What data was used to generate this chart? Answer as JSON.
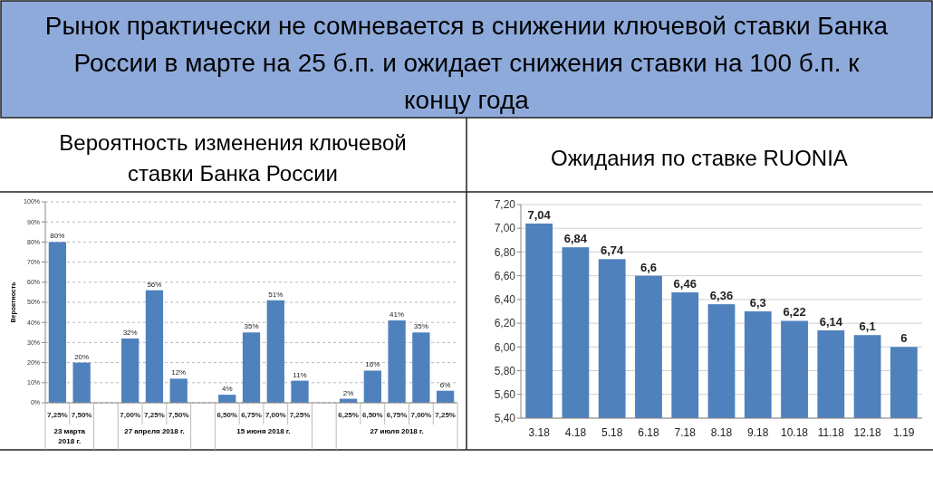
{
  "chart_data": [
    {
      "type": "bar",
      "title": "Рынок практически не сомневается в снижении ключевой ставки Банка России в марте на 25 б.п. и ожидает снижения ставки на 100 б.п. к концу года",
      "subtitle": "Вероятность изменения ключевой ставки Банка России",
      "ylabel": "Вероятность",
      "categories": [
        "7,25%",
        "7,50%",
        null,
        "7,00%",
        "7,25%",
        "7,50%",
        null,
        "6,50%",
        "6,75%",
        "7,00%",
        "7,25%",
        null,
        "6,25%",
        "6,50%",
        "6,75%",
        "7,00%",
        "7,25%"
      ],
      "values": [
        80,
        20,
        null,
        32,
        56,
        12,
        null,
        4,
        35,
        51,
        11,
        null,
        2,
        16,
        41,
        35,
        6
      ],
      "value_labels": [
        "80%",
        "20%",
        null,
        "32%",
        "56%",
        "12%",
        null,
        "4%",
        "35%",
        "51%",
        "11%",
        null,
        "2%",
        "16%",
        "41%",
        "35%",
        "6%"
      ],
      "color": "#4f81bd",
      "annotations": [
        "23 марта 2018 г.",
        "27 апреля 2018 г.",
        "15 июня 2018 г.",
        "27 июля 2018 г."
      ],
      "ylim": [
        0,
        100
      ],
      "yticks": [
        {
          "value": 0,
          "label": "0%"
        },
        {
          "value": 10,
          "label": "10%"
        },
        {
          "value": 20,
          "label": "20%"
        },
        {
          "value": 30,
          "label": "30%"
        },
        {
          "value": 40,
          "label": "40%"
        },
        {
          "value": 50,
          "label": "50%"
        },
        {
          "value": 60,
          "label": "60%"
        },
        {
          "value": 70,
          "label": "70%"
        },
        {
          "value": 80,
          "label": "80%"
        },
        {
          "value": 90,
          "label": "90%"
        },
        {
          "value": 100,
          "label": "100%"
        }
      ],
      "grid": "y",
      "line_style": "dashed"
    },
    {
      "type": "bar",
      "subtitle": "Ожидания по ставке RUONIA",
      "categories": [
        "3.18",
        "4.18",
        "5.18",
        "6.18",
        "7.18",
        "8.18",
        "9.18",
        "10.18",
        "11.18",
        "12.18",
        "1.19"
      ],
      "values": [
        7.04,
        6.84,
        6.74,
        6.6,
        6.46,
        6.36,
        6.3,
        6.22,
        6.14,
        6.1,
        6
      ],
      "value_labels": [
        "7,04",
        "6,84",
        "6,74",
        "6,6",
        "6,46",
        "6,36",
        "6,3",
        "6,22",
        "6,14",
        "6,1",
        "6"
      ],
      "color": "#4f81bd",
      "ylim": [
        5.4,
        7.2
      ],
      "yticks": [
        {
          "value": 5.4,
          "label": "5,40"
        },
        {
          "value": 5.6,
          "label": "5,60"
        },
        {
          "value": 5.8,
          "label": "5,80"
        },
        {
          "value": 6.0,
          "label": "6,00"
        },
        {
          "value": 6.2,
          "label": "6,20"
        },
        {
          "value": 6.4,
          "label": "6,40"
        },
        {
          "value": 6.6,
          "label": "6,60"
        },
        {
          "value": 6.8,
          "label": "6,80"
        },
        {
          "value": 7.0,
          "label": "7,00"
        },
        {
          "value": 7.2,
          "label": "7,20"
        }
      ],
      "grid": "y",
      "line_style": "solid"
    }
  ]
}
